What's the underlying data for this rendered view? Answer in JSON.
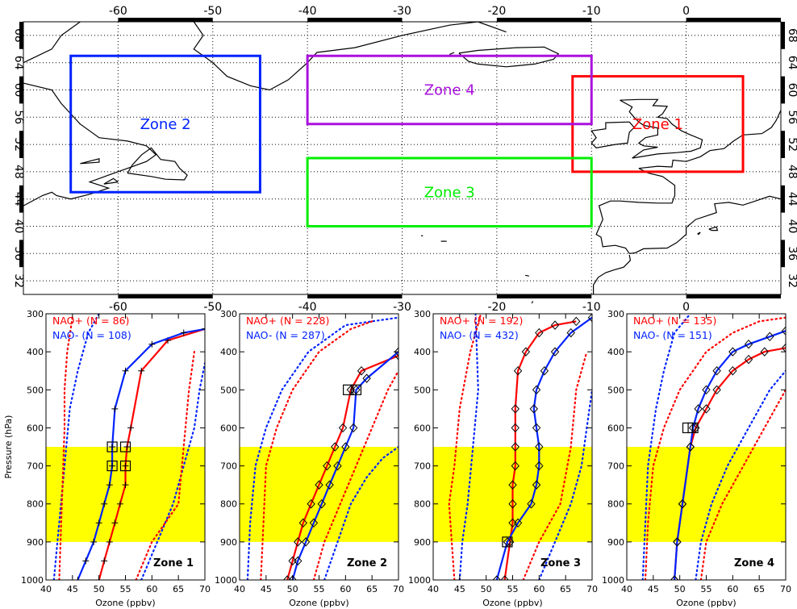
{
  "chart_data": [
    {
      "type": "map",
      "x_ticks": [
        "-60",
        "-50",
        "-40",
        "-30",
        "-20",
        "-10",
        "0"
      ],
      "x_tick_values": [
        -60,
        -50,
        -40,
        -30,
        -20,
        -10,
        0
      ],
      "y_ticks": [
        "32",
        "36",
        "40",
        "44",
        "48",
        "52",
        "56",
        "60",
        "64",
        "68"
      ],
      "y_tick_values": [
        32,
        36,
        40,
        44,
        48,
        52,
        56,
        60,
        64,
        68
      ],
      "xlim": [
        -70,
        10
      ],
      "ylim": [
        30,
        70
      ],
      "grid": true,
      "zones": [
        {
          "label": "Zone 1",
          "color": "#ff0000",
          "lon": [
            -12,
            6
          ],
          "lat": [
            48,
            62
          ]
        },
        {
          "label": "Zone 2",
          "color": "#0022ff",
          "lon": [
            -65,
            -45
          ],
          "lat": [
            45,
            65
          ]
        },
        {
          "label": "Zone 3",
          "color": "#00ee00",
          "lon": [
            -40,
            -10
          ],
          "lat": [
            40,
            50
          ]
        },
        {
          "label": "Zone 4",
          "color": "#aa11dd",
          "lon": [
            -40,
            -10
          ],
          "lat": [
            55,
            65
          ]
        }
      ]
    },
    {
      "type": "line",
      "panels": [
        {
          "zone_label": "Zone 1",
          "nao_plus": "NAO+ (N = 86)",
          "nao_minus": "NAO- (N = 108)",
          "red_mean": {
            "x": [
              50,
              51,
              52,
              53,
              54,
              55,
              55,
              55.3,
              56,
              58,
              63,
              70
            ],
            "y": [
              1000,
              950,
              900,
              850,
              800,
              750,
              700,
              650,
              600,
              450,
              370,
              340
            ]
          },
          "blue_mean": {
            "x": [
              46,
              47.5,
              49,
              50,
              51,
              52,
              52.5,
              52.5,
              53,
              55,
              60,
              66,
              70
            ],
            "y": [
              1000,
              950,
              900,
              850,
              800,
              750,
              700,
              650,
              550,
              450,
              380,
              350,
              340
            ]
          },
          "red_dotted": [
            {
              "x": [
                42.5,
                43,
                43.5,
                43.5,
                44,
                45
              ],
              "y": [
                1000,
                800,
                600,
                500,
                400,
                310
              ]
            },
            {
              "x": [
                57,
                60,
                65,
                66,
                67,
                68
              ],
              "y": [
                1000,
                900,
                800,
                650,
                500,
                400
              ]
            }
          ],
          "blue_dotted": [
            {
              "x": [
                41.5,
                42.5,
                43.5,
                44.5,
                46,
                48,
                50
              ],
              "y": [
                1000,
                850,
                700,
                550,
                450,
                350,
                300
              ]
            },
            {
              "x": [
                58,
                61,
                64,
                66,
                68,
                69,
                70
              ],
              "y": [
                1000,
                900,
                800,
                700,
                600,
                500,
                430
              ]
            }
          ],
          "markers": "plus",
          "squares": [
            {
              "x": 52.5,
              "y": 650
            },
            {
              "x": 52.5,
              "y": 700
            },
            {
              "x": 55,
              "y": 650
            },
            {
              "x": 55,
              "y": 700
            }
          ]
        },
        {
          "zone_label": "Zone 2",
          "nao_plus": "NAO+ (N = 228)",
          "nao_minus": "NAO- (N = 287)",
          "red_mean": {
            "x": [
              49,
              50,
              51,
              52,
              53.5,
              55,
              56.5,
              58,
              59.5,
              61,
              63,
              70
            ],
            "y": [
              1000,
              950,
              900,
              850,
              800,
              750,
              700,
              650,
              600,
              500,
              450,
              410
            ]
          },
          "blue_mean": {
            "x": [
              50,
              51,
              52.5,
              54,
              55.5,
              57,
              58.5,
              60,
              61.5,
              62,
              64,
              70
            ],
            "y": [
              1000,
              950,
              900,
              850,
              800,
              750,
              700,
              650,
              600,
              500,
              470,
              400
            ]
          },
          "red_dotted": [
            {
              "x": [
                44,
                44.5,
                45,
                47,
                50,
                55,
                61,
                65
              ],
              "y": [
                1000,
                850,
                700,
                600,
                500,
                400,
                340,
                320
              ]
            },
            {
              "x": [
                54,
                56,
                59,
                62,
                65,
                68,
                70
              ],
              "y": [
                1000,
                900,
                800,
                700,
                600,
                500,
                450
              ]
            }
          ],
          "blue_dotted": [
            {
              "x": [
                41.5,
                42,
                43,
                45,
                48,
                53,
                60,
                70
              ],
              "y": [
                1000,
                850,
                700,
                600,
                500,
                400,
                330,
                310
              ]
            },
            {
              "x": [
                56,
                58.5,
                61,
                64,
                67,
                70
              ],
              "y": [
                1000,
                900,
                800,
                730,
                680,
                650
              ]
            }
          ],
          "markers": "diamond",
          "squares": [
            {
              "x": 60.5,
              "y": 500
            },
            {
              "x": 62,
              "y": 500
            }
          ]
        },
        {
          "zone_label": "Zone 3",
          "nao_plus": "NAO+ (N = 192)",
          "nao_minus": "NAO- (N = 432)",
          "red_mean": {
            "x": [
              53.5,
              54.5,
              55,
              55,
              55,
              55.5,
              55.5,
              55.5,
              55.5,
              56,
              57.5,
              60,
              63,
              67
            ],
            "y": [
              1000,
              900,
              850,
              800,
              750,
              700,
              650,
              600,
              550,
              450,
              400,
              350,
              330,
              320
            ]
          },
          "blue_mean": {
            "x": [
              52,
              54,
              56,
              58.5,
              59.5,
              60,
              60,
              59.5,
              59,
              59.5,
              61,
              63,
              66,
              70
            ],
            "y": [
              1000,
              900,
              850,
              800,
              750,
              700,
              650,
              600,
              550,
              500,
              450,
              400,
              350,
              310
            ]
          },
          "red_dotted": [
            {
              "x": [
                44,
                43,
                44,
                45,
                47,
                49
              ],
              "y": [
                1000,
                800,
                700,
                550,
                400,
                300
              ]
            },
            {
              "x": [
                57,
                60,
                64,
                66,
                67,
                69
              ],
              "y": [
                1000,
                900,
                800,
                650,
                500,
                400
              ]
            }
          ],
          "blue_dotted": [
            {
              "x": [
                45,
                45.5,
                46.5,
                47.5,
                48.5,
                48
              ],
              "y": [
                1000,
                900,
                800,
                650,
                500,
                300
              ]
            },
            {
              "x": [
                60,
                63,
                66,
                68,
                69,
                70
              ],
              "y": [
                1000,
                900,
                800,
                700,
                600,
                500
              ]
            }
          ],
          "markers": "diamond",
          "squares": [
            {
              "x": 54,
              "y": 900
            }
          ]
        },
        {
          "zone_label": "Zone 4",
          "nao_plus": "NAO+ (N = 135)",
          "nao_minus": "NAO- (N = 151)",
          "red_mean": {
            "x": [
              49,
              49.5,
              50.5,
              52,
              53,
              55,
              57,
              60,
              63,
              66,
              70
            ],
            "y": [
              1000,
              900,
              800,
              650,
              600,
              550,
              500,
              450,
              420,
              400,
              390
            ]
          },
          "blue_mean": {
            "x": [
              49,
              49.5,
              50.5,
              52,
              52.5,
              53.5,
              55,
              57,
              60,
              63,
              67,
              70
            ],
            "y": [
              1000,
              900,
              800,
              650,
              600,
              550,
              500,
              450,
              400,
              380,
              360,
              345
            ]
          },
          "red_dotted": [
            {
              "x": [
                43.5,
                44,
                45,
                47,
                50,
                55,
                60,
                65,
                70
              ],
              "y": [
                1000,
                850,
                700,
                600,
                500,
                400,
                350,
                320,
                310
              ]
            },
            {
              "x": [
                54,
                55,
                58,
                62,
                66,
                70
              ],
              "y": [
                1000,
                900,
                800,
                700,
                600,
                500
              ]
            }
          ],
          "blue_dotted": [
            {
              "x": [
                43,
                43.5,
                44,
                45.5,
                47,
                49,
                52
              ],
              "y": [
                1000,
                850,
                700,
                550,
                450,
                350,
                300
              ]
            },
            {
              "x": [
                53,
                54,
                56,
                59,
                63,
                67,
                70
              ],
              "y": [
                1000,
                900,
                800,
                700,
                600,
                500,
                450
              ]
            }
          ],
          "markers": "diamond",
          "squares": [
            {
              "x": 51.5,
              "y": 600
            },
            {
              "x": 52.5,
              "y": 600
            }
          ]
        }
      ],
      "xlabel": "Ozone (ppbv)",
      "ylabel": "Pressure (hPa)",
      "xlim": [
        40,
        70
      ],
      "ylim": [
        300,
        1000
      ],
      "x_ticks": [
        "40",
        "45",
        "50",
        "55",
        "60",
        "65",
        "70"
      ],
      "x_tick_values": [
        40,
        45,
        50,
        55,
        60,
        65,
        70
      ],
      "y_ticks": [
        "300",
        "400",
        "500",
        "600",
        "700",
        "800",
        "900",
        "1000"
      ],
      "y_tick_values": [
        300,
        400,
        500,
        600,
        700,
        800,
        900,
        1000
      ],
      "highlight_band": {
        "from": 650,
        "to": 900,
        "color": "#ffff00"
      },
      "colors": {
        "nao_plus": "#ff0000",
        "nao_minus": "#0022ff"
      }
    }
  ]
}
